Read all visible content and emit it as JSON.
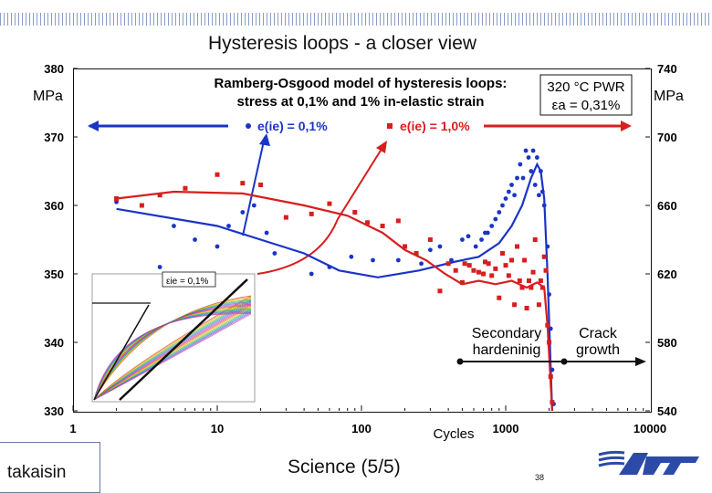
{
  "title": "Hysteresis loops  -  a closer view",
  "chart_data": {
    "type": "scatter",
    "title": "Ramberg-Osgood model of hysteresis loops:\nstress at 0,1% and 1% in-elastic strain",
    "condition_line1": "320 °C PWR",
    "condition_line2": "εa = 0,31%",
    "xlabel": "Cycles",
    "x_scale": "log",
    "xlim": [
      1,
      10000
    ],
    "x_ticks": [
      "1",
      "10",
      "100",
      "1000",
      "10000"
    ],
    "left_axis": {
      "unit": "MPa",
      "ylim": [
        330,
        380
      ],
      "ticks": [
        "330",
        "340",
        "350",
        "360",
        "370",
        "380"
      ]
    },
    "right_axis": {
      "unit": "MPa",
      "ylim": [
        540,
        740
      ],
      "ticks": [
        "540",
        "580",
        "620",
        "660",
        "700",
        "740"
      ]
    },
    "legend_position": "top",
    "series": [
      {
        "name": "e(ie) = 0,1%",
        "color": "#1a34c8",
        "axis": "left",
        "points": [
          [
            2,
            360.5
          ],
          [
            4,
            351
          ],
          [
            5,
            357
          ],
          [
            7,
            355
          ],
          [
            10,
            354
          ],
          [
            12,
            357
          ],
          [
            15,
            359
          ],
          [
            18,
            360
          ],
          [
            22,
            356
          ],
          [
            25,
            353
          ],
          [
            45,
            350
          ],
          [
            60,
            351
          ],
          [
            85,
            352.5
          ],
          [
            120,
            352
          ],
          [
            180,
            352
          ],
          [
            260,
            351.5
          ],
          [
            300,
            353.5
          ],
          [
            350,
            354
          ],
          [
            420,
            352
          ],
          [
            500,
            355
          ],
          [
            550,
            355.5
          ],
          [
            620,
            354
          ],
          [
            680,
            355
          ],
          [
            720,
            356
          ],
          [
            750,
            356
          ],
          [
            800,
            357
          ],
          [
            850,
            358
          ],
          [
            900,
            359
          ],
          [
            950,
            360
          ],
          [
            1000,
            361
          ],
          [
            1050,
            362
          ],
          [
            1100,
            363
          ],
          [
            1150,
            361.5
          ],
          [
            1200,
            364
          ],
          [
            1260,
            366
          ],
          [
            1320,
            364
          ],
          [
            1380,
            368
          ],
          [
            1440,
            367
          ],
          [
            1500,
            365
          ],
          [
            1550,
            368
          ],
          [
            1600,
            363
          ],
          [
            1650,
            367
          ],
          [
            1700,
            361.5
          ],
          [
            1750,
            365
          ],
          [
            1800,
            362
          ],
          [
            1850,
            360
          ],
          [
            1950,
            354
          ],
          [
            2000,
            347
          ],
          [
            2050,
            342
          ],
          [
            2100,
            336
          ],
          [
            2150,
            331
          ]
        ]
      },
      {
        "name": "e(ie) = 1,0%",
        "color": "#d81e1e",
        "axis": "right",
        "points": [
          [
            2,
            664
          ],
          [
            3,
            660
          ],
          [
            4,
            666
          ],
          [
            6,
            670
          ],
          [
            10,
            678
          ],
          [
            15,
            673
          ],
          [
            20,
            672
          ],
          [
            30,
            653
          ],
          [
            45,
            655
          ],
          [
            60,
            661
          ],
          [
            90,
            656
          ],
          [
            110,
            650
          ],
          [
            140,
            648
          ],
          [
            180,
            651
          ],
          [
            200,
            636
          ],
          [
            240,
            632
          ],
          [
            300,
            640
          ],
          [
            350,
            610
          ],
          [
            400,
            626
          ],
          [
            450,
            622
          ],
          [
            500,
            615
          ],
          [
            520,
            626
          ],
          [
            560,
            625
          ],
          [
            600,
            622
          ],
          [
            650,
            621
          ],
          [
            700,
            620
          ],
          [
            720,
            627
          ],
          [
            760,
            626
          ],
          [
            800,
            619
          ],
          [
            850,
            623
          ],
          [
            900,
            606
          ],
          [
            950,
            632
          ],
          [
            1000,
            625
          ],
          [
            1050,
            619
          ],
          [
            1100,
            628
          ],
          [
            1150,
            602
          ],
          [
            1200,
            636
          ],
          [
            1250,
            616
          ],
          [
            1300,
            612
          ],
          [
            1350,
            628
          ],
          [
            1400,
            600
          ],
          [
            1450,
            616
          ],
          [
            1500,
            612
          ],
          [
            1550,
            621
          ],
          [
            1600,
            640
          ],
          [
            1700,
            602
          ],
          [
            1750,
            616
          ],
          [
            1800,
            612
          ],
          [
            1850,
            630
          ],
          [
            1900,
            622
          ],
          [
            1950,
            590
          ],
          [
            2000,
            580
          ],
          [
            2050,
            560
          ],
          [
            2100,
            545
          ]
        ]
      }
    ],
    "fit_lines": [
      {
        "series": "e(ie) = 0,1%",
        "color": "#1a34c8",
        "axis": "left",
        "points": [
          [
            2,
            359.5
          ],
          [
            10,
            357
          ],
          [
            20,
            355
          ],
          [
            40,
            353
          ],
          [
            70,
            350.5
          ],
          [
            130,
            349.5
          ],
          [
            250,
            350.5
          ],
          [
            450,
            351.8
          ],
          [
            650,
            352.5
          ],
          [
            900,
            354.5
          ],
          [
            1100,
            357
          ],
          [
            1300,
            360
          ],
          [
            1500,
            364
          ],
          [
            1650,
            366
          ],
          [
            1750,
            365
          ],
          [
            1850,
            361
          ],
          [
            1950,
            350
          ],
          [
            2100,
            330
          ]
        ]
      },
      {
        "series": "e(ie) = 1,0%",
        "color": "#d81e1e",
        "axis": "right",
        "points": [
          [
            2,
            664
          ],
          [
            5,
            668
          ],
          [
            15,
            667
          ],
          [
            40,
            660
          ],
          [
            80,
            654
          ],
          [
            140,
            644
          ],
          [
            200,
            634
          ],
          [
            280,
            628
          ],
          [
            380,
            620
          ],
          [
            500,
            614
          ],
          [
            650,
            616
          ],
          [
            850,
            614
          ],
          [
            1100,
            616
          ],
          [
            1400,
            612
          ],
          [
            1650,
            615
          ],
          [
            1850,
            612
          ],
          [
            1950,
            590
          ],
          [
            2100,
            540
          ]
        ]
      }
    ],
    "annotations": [
      "Secondary\nhardeninig",
      "Crack\ngrowth"
    ],
    "inset_label": "εie = 0,1%"
  },
  "footer": {
    "back_link": "takaisin",
    "section": "Science (5/5)",
    "page_number": "38",
    "logo_text": "VTT"
  }
}
